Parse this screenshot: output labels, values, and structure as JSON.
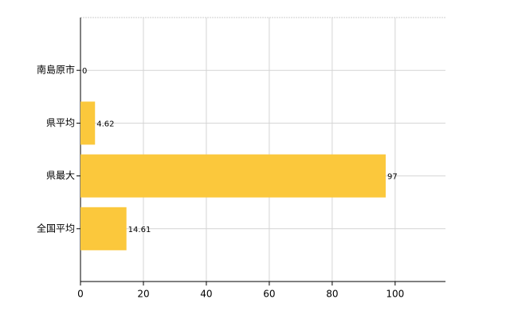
{
  "chart_data": {
    "type": "barh",
    "categories": [
      "南島原市",
      "県平均",
      "県最大",
      "全国平均"
    ],
    "values": [
      0,
      4.62,
      97,
      14.61
    ],
    "color": "#fbc83c",
    "xlim": [
      0,
      116
    ],
    "xticks": [
      0,
      20,
      40,
      60,
      80,
      100
    ],
    "grid": true
  }
}
